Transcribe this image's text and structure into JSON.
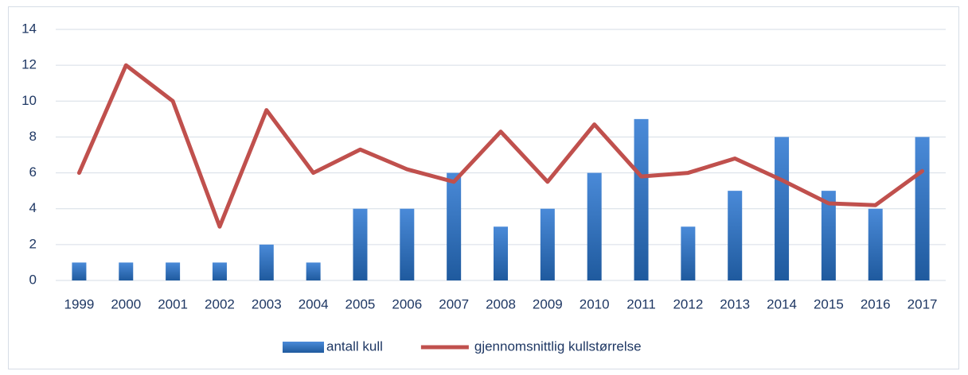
{
  "chart_data": {
    "type": "combo",
    "categories": [
      "1999",
      "2000",
      "2001",
      "2002",
      "2003",
      "2004",
      "2005",
      "2006",
      "2007",
      "2008",
      "2009",
      "2010",
      "2011",
      "2012",
      "2013",
      "2014",
      "2015",
      "2016",
      "2017"
    ],
    "series": [
      {
        "name": "antall kull",
        "type": "bar",
        "color": "#3a7cc9",
        "values": [
          1,
          1,
          1,
          1,
          2,
          1,
          4,
          4,
          6,
          3,
          4,
          6,
          9,
          3,
          5,
          8,
          5,
          4,
          8
        ]
      },
      {
        "name": "gjennomsnittlig kullstørrelse",
        "type": "line",
        "color": "#c0504d",
        "values": [
          6,
          12,
          10,
          3,
          9.5,
          6,
          7.3,
          6.2,
          5.5,
          8.3,
          5.5,
          8.7,
          5.8,
          6,
          6.8,
          5.6,
          4.3,
          4.2,
          6.1
        ]
      }
    ],
    "ylim": [
      0,
      14
    ],
    "yticks": [
      0,
      2,
      4,
      6,
      8,
      10,
      12,
      14
    ],
    "grid": true,
    "legend": "bottom"
  }
}
